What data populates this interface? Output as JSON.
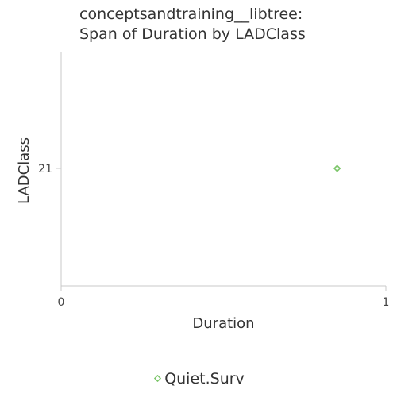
{
  "chart_data": {
    "type": "scatter",
    "title": "conceptsandtraining__libtree:\nSpan of Duration by LADClass",
    "xlabel": "Duration",
    "ylabel": "LADClass",
    "xlim": [
      0,
      1
    ],
    "x_ticks": [
      "0",
      "1"
    ],
    "y_categories": [
      "21"
    ],
    "grid": false,
    "legend_position": "bottom",
    "series": [
      {
        "name": "Quiet.Surv",
        "marker": "diamond",
        "color": "#7dc66b",
        "points": [
          {
            "x": 0.85,
            "y": "21"
          }
        ]
      }
    ]
  }
}
